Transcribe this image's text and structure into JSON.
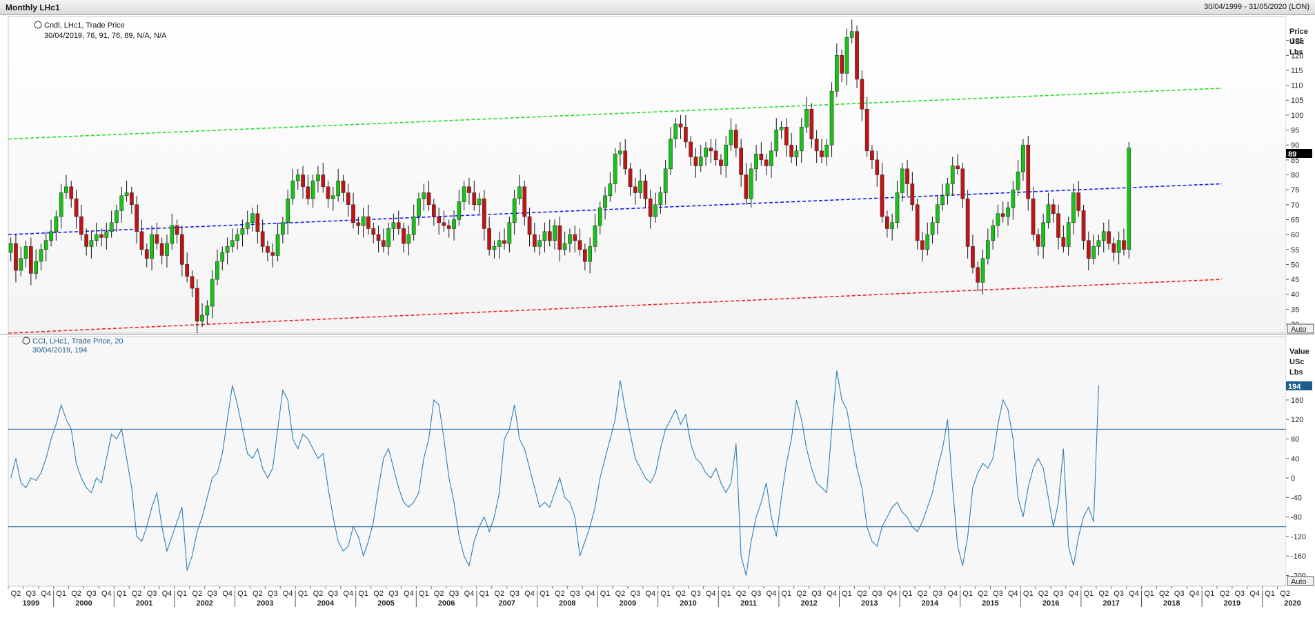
{
  "window": {
    "title": "Monthly LHc1",
    "date_range": "30/04/1999 - 31/05/2020 (LON)"
  },
  "price_panel": {
    "legend_line1": "Cndl, LHc1, Trade Price",
    "legend_line2": "30/04/2019, 76, 91, 76, 89, N/A, N/A",
    "axis_title": [
      "Price",
      "USc",
      "Lbs"
    ],
    "last_value_label": "89",
    "auto_label": "Auto",
    "yticks": [
      30,
      35,
      40,
      45,
      50,
      55,
      60,
      65,
      70,
      75,
      80,
      85,
      90,
      95,
      100,
      105,
      110,
      115,
      120,
      125
    ],
    "ylim": [
      27,
      133
    ]
  },
  "cci_panel": {
    "legend_line1": "CCI, LHc1, Trade Price,  20",
    "legend_line2": "30/04/2019, 194",
    "axis_title": [
      "Value",
      "USc",
      "Lbs"
    ],
    "last_value_label": "194",
    "auto_label": "Auto",
    "yticks": [
      -200,
      -160,
      -120,
      -80,
      -40,
      0,
      40,
      80,
      120,
      160
    ],
    "ylim": [
      -222,
      290
    ],
    "reference_lines": [
      100,
      -100
    ]
  },
  "x_axis": {
    "quarter_labels": [
      "Q2",
      "Q3",
      "Q4",
      "Q1",
      "Q2",
      "Q3",
      "Q4",
      "Q1",
      "Q2",
      "Q3",
      "Q4",
      "Q1",
      "Q2",
      "Q3",
      "Q4",
      "Q1",
      "Q2",
      "Q3",
      "Q4",
      "Q1",
      "Q2",
      "Q3",
      "Q4",
      "Q1",
      "Q2",
      "Q3",
      "Q4",
      "Q1",
      "Q2",
      "Q3",
      "Q4",
      "Q1",
      "Q2",
      "Q3",
      "Q4",
      "Q1",
      "Q2",
      "Q3",
      "Q4",
      "Q1",
      "Q2",
      "Q3",
      "Q4",
      "Q1",
      "Q2",
      "Q3",
      "Q4",
      "Q1",
      "Q2",
      "Q3",
      "Q4",
      "Q1",
      "Q2",
      "Q3",
      "Q4",
      "Q1",
      "Q2",
      "Q3",
      "Q4",
      "Q1",
      "Q2",
      "Q3",
      "Q4",
      "Q1",
      "Q2",
      "Q3",
      "Q4",
      "Q1",
      "Q2",
      "Q3",
      "Q4",
      "Q1",
      "Q2",
      "Q3",
      "Q4",
      "Q1",
      "Q2",
      "Q3",
      "Q4",
      "Q1",
      "Q2",
      "Q3",
      "Q4",
      "Q1",
      "Q2"
    ],
    "years": [
      "1999",
      "2000",
      "2001",
      "2002",
      "2003",
      "2004",
      "2005",
      "2006",
      "2007",
      "2008",
      "2009",
      "2010",
      "2011",
      "2012",
      "2013",
      "2014",
      "2015",
      "2016",
      "2017",
      "2018",
      "2019",
      "2020"
    ]
  },
  "chart_data": [
    {
      "type": "candlestick",
      "title": "Cndl, LHc1, Trade Price",
      "ylabel": "Price USc Lbs",
      "frequency": "monthly",
      "x_start": "1999-04",
      "x_end": "2019-04",
      "ohlc_close": [
        57,
        48,
        52,
        56,
        47,
        51,
        55,
        58,
        61,
        66,
        74,
        76,
        72,
        66,
        60,
        56,
        58,
        60,
        59,
        61,
        64,
        68,
        73,
        74,
        70,
        61,
        55,
        52,
        60,
        57,
        53,
        57,
        63,
        60,
        50,
        46,
        42,
        31,
        33,
        36,
        45,
        51,
        54,
        56,
        58,
        60,
        62,
        64,
        67,
        61,
        56,
        54,
        53,
        60,
        64,
        72,
        78,
        80,
        76,
        72,
        78,
        80,
        76,
        72,
        73,
        78,
        74,
        70,
        64,
        63,
        66,
        62,
        60,
        58,
        56,
        62,
        64,
        62,
        57,
        60,
        66,
        72,
        74,
        70,
        66,
        64,
        63,
        62,
        65,
        71,
        76,
        74,
        70,
        72,
        62,
        55,
        56,
        58,
        57,
        64,
        72,
        76,
        66,
        60,
        56,
        58,
        61,
        58,
        63,
        55,
        57,
        60,
        58,
        55,
        51,
        56,
        63,
        69,
        73,
        77,
        87,
        88,
        82,
        76,
        74,
        78,
        72,
        66,
        70,
        74,
        82,
        92,
        97,
        96,
        91,
        86,
        83,
        86,
        89,
        88,
        85,
        83,
        90,
        95,
        89,
        80,
        72,
        82,
        87,
        85,
        83,
        88,
        95,
        96,
        90,
        86,
        88,
        96,
        102,
        92,
        88,
        86,
        90,
        108,
        120,
        114,
        126,
        128,
        112,
        102,
        88,
        85,
        80,
        66,
        62,
        64,
        74,
        82,
        77,
        70,
        58,
        55,
        60,
        64,
        70,
        73,
        77,
        83,
        82,
        72,
        56,
        49,
        44,
        52,
        58,
        63,
        67,
        66,
        69,
        75,
        81,
        90,
        72,
        60,
        56,
        64,
        70,
        67,
        59,
        56,
        64,
        74,
        68,
        58,
        52,
        56,
        58,
        61,
        57,
        54,
        58,
        55,
        89
      ],
      "trend_lines": [
        {
          "name": "upper",
          "color": "#22dd22",
          "from": [
            1999.25,
            92
          ],
          "to": [
            2019.33,
            109
          ]
        },
        {
          "name": "middle",
          "color": "#1a1aee",
          "from": [
            1999.25,
            60
          ],
          "to": [
            2019.33,
            77
          ]
        },
        {
          "name": "lower",
          "color": "#ee2222",
          "from": [
            1999.25,
            27
          ],
          "to": [
            2019.33,
            45
          ]
        }
      ],
      "last": {
        "date": "30/04/2019",
        "open": 76,
        "high": 91,
        "low": 76,
        "close": 89
      }
    },
    {
      "type": "line",
      "title": "CCI, LHc1, Trade Price,  20",
      "ylabel": "Value USc Lbs",
      "x_start": "1999-04",
      "x_end": "2019-04",
      "values": [
        0,
        40,
        -10,
        -20,
        0,
        -5,
        10,
        40,
        80,
        110,
        150,
        120,
        100,
        30,
        0,
        -20,
        -30,
        0,
        -10,
        40,
        90,
        80,
        100,
        40,
        -20,
        -120,
        -130,
        -100,
        -60,
        -30,
        -100,
        -150,
        -120,
        -90,
        -60,
        -190,
        -160,
        -110,
        -80,
        -40,
        0,
        10,
        50,
        120,
        190,
        150,
        100,
        50,
        40,
        60,
        20,
        0,
        20,
        100,
        180,
        160,
        80,
        60,
        90,
        80,
        60,
        40,
        50,
        -20,
        -80,
        -130,
        -150,
        -140,
        -100,
        -120,
        -160,
        -130,
        -90,
        -20,
        40,
        60,
        20,
        -20,
        -50,
        -60,
        -50,
        -30,
        40,
        80,
        160,
        150,
        80,
        0,
        -50,
        -120,
        -160,
        -180,
        -130,
        -100,
        -80,
        -110,
        -80,
        -30,
        80,
        100,
        150,
        80,
        60,
        20,
        -20,
        -60,
        -50,
        -60,
        -30,
        0,
        -40,
        -50,
        -80,
        -160,
        -130,
        -100,
        -60,
        0,
        40,
        80,
        120,
        200,
        140,
        90,
        40,
        20,
        0,
        -10,
        10,
        60,
        100,
        120,
        140,
        110,
        130,
        70,
        40,
        30,
        10,
        0,
        20,
        -10,
        -30,
        -10,
        70,
        -160,
        -200,
        -130,
        -80,
        -50,
        -10,
        -80,
        -120,
        -40,
        30,
        80,
        160,
        120,
        60,
        20,
        -10,
        -20,
        -30,
        100,
        220,
        160,
        140,
        80,
        20,
        -20,
        -100,
        -130,
        -140,
        -100,
        -80,
        -60,
        -50,
        -70,
        -80,
        -100,
        -110,
        -90,
        -60,
        -30,
        20,
        60,
        120,
        -20,
        -140,
        -180,
        -120,
        -20,
        10,
        30,
        20,
        40,
        110,
        160,
        140,
        80,
        -40,
        -80,
        -20,
        20,
        40,
        20,
        -40,
        -100,
        -50,
        60,
        -140,
        -180,
        -120,
        -80,
        -60,
        -90,
        190
      ]
    }
  ]
}
